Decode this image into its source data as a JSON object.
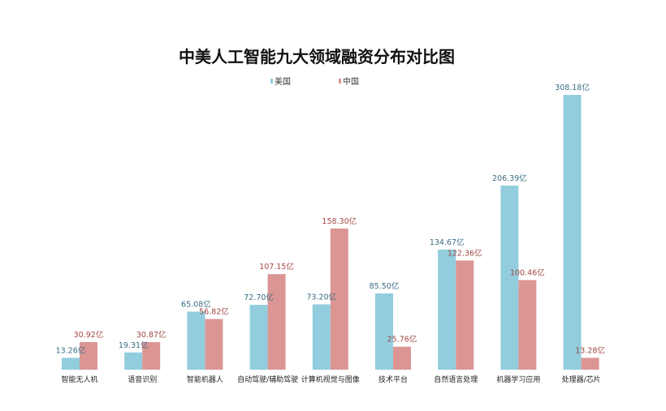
{
  "chart_data": {
    "type": "bar",
    "title": "中美人工智能九大领域融资分布对比图",
    "categories": [
      "智能无人机",
      "语音识别",
      "智能机器人",
      "自动驾驶/辅助驾驶",
      "计算机视觉与图像",
      "技术平台",
      "自然语言处理",
      "机器学习应用",
      "处理器/芯片"
    ],
    "series": [
      {
        "name": "美国",
        "color": "#92cddd",
        "label_color": "#3a6d85",
        "values": [
          13.26,
          19.31,
          65.08,
          72.7,
          73.2,
          85.5,
          134.67,
          206.39,
          308.18
        ],
        "labels": [
          "13.26亿",
          "19.31亿",
          "65.08亿",
          "72.70亿",
          "73.20亿",
          "85.50亿",
          "134.67亿",
          "206.39亿",
          "308.18亿"
        ]
      },
      {
        "name": "中国",
        "color": "#db9694",
        "label_color": "#a24744",
        "values": [
          30.92,
          30.87,
          56.82,
          107.15,
          158.3,
          25.76,
          122.36,
          100.46,
          13.28
        ],
        "labels": [
          "30.92亿",
          "30.87亿",
          "56.82亿",
          "107.15亿",
          "158.30亿",
          "25.76亿",
          "122.36亿",
          "100.46亿",
          "13.28亿"
        ]
      }
    ],
    "ylim": [
      0,
      310
    ],
    "grid": false,
    "legend_position": "top-center"
  }
}
